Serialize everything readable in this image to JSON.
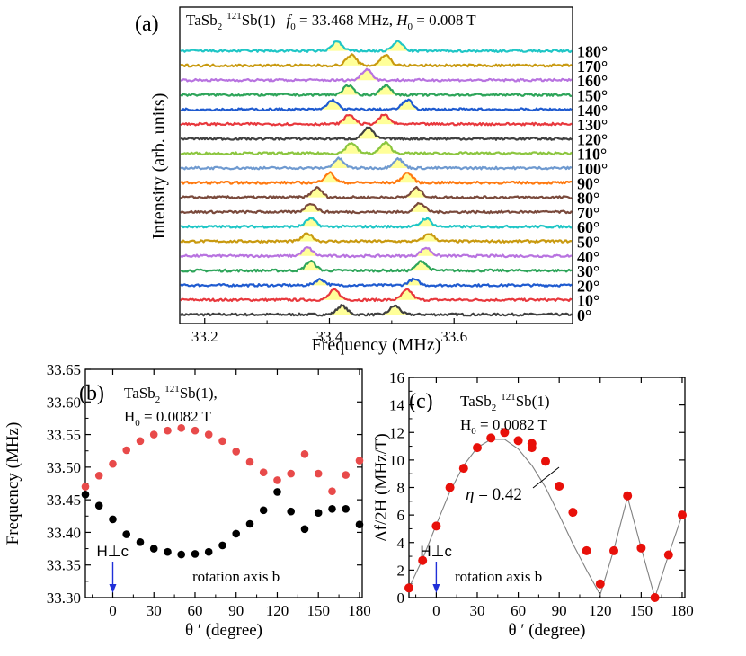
{
  "chart_data": [
    {
      "panel": "(a)",
      "type": "line",
      "title_parts": {
        "compound": "TaSb",
        "compound_sub": "2",
        "isotope": "121",
        "site": "Sb(1)",
        "f0_label": "f",
        "f0_sub": "0",
        "f0_value": " = 33.468 MHz, ",
        "h0_label": "H",
        "h0_sub": "0",
        "h0_value": " = 0.008 T"
      },
      "xlabel": "Frequency (MHz)",
      "ylabel": "Intensity (arb. units)",
      "xlim": [
        33.16,
        33.79
      ],
      "x_ticks": [
        "33.2",
        "33.4",
        "33.6"
      ],
      "x_tick_values": [
        33.2,
        33.4,
        33.6
      ],
      "peak_fill": "#ffff99",
      "spectra": [
        {
          "angle": "0°",
          "color": "#404040",
          "peaks": [
            33.42,
            33.505
          ],
          "amp": 0.75
        },
        {
          "angle": "10°",
          "color": "#e8383d",
          "peaks": [
            33.408,
            33.525
          ],
          "amp": 0.85
        },
        {
          "angle": "20°",
          "color": "#1f5bd0",
          "peaks": [
            33.385,
            33.535
          ],
          "amp": 0.5
        },
        {
          "angle": "30°",
          "color": "#2ea55a",
          "peaks": [
            33.37,
            33.548
          ],
          "amp": 0.8
        },
        {
          "angle": "40°",
          "color": "#b873e0",
          "peaks": [
            33.365,
            33.555
          ],
          "amp": 0.7
        },
        {
          "angle": "50°",
          "color": "#c99a10",
          "peaks": [
            33.365,
            33.56
          ],
          "amp": 0.65
        },
        {
          "angle": "60°",
          "color": "#1fc6c6",
          "peaks": [
            33.37,
            33.555
          ],
          "amp": 0.7
        },
        {
          "angle": "70°",
          "color": "#7a4a3c",
          "peaks": [
            33.37,
            33.545
          ],
          "amp": 0.75
        },
        {
          "angle": "80°",
          "color": "#7a4a3c",
          "peaks": [
            33.38,
            33.54
          ],
          "amp": 0.8
        },
        {
          "angle": "90°",
          "color": "#ff7a10",
          "peaks": [
            33.4,
            33.525
          ],
          "amp": 0.85
        },
        {
          "angle": "100°",
          "color": "#6f9ad0",
          "peaks": [
            33.415,
            33.51
          ],
          "amp": 0.8
        },
        {
          "angle": "110°",
          "color": "#8cc63f",
          "peaks": [
            33.435,
            33.49
          ],
          "amp": 0.9
        },
        {
          "angle": "120°",
          "color": "#404040",
          "peaks": [
            33.462
          ],
          "amp": 0.95
        },
        {
          "angle": "130°",
          "color": "#e8383d",
          "peaks": [
            33.432,
            33.488
          ],
          "amp": 0.8
        },
        {
          "angle": "140°",
          "color": "#1f5bd0",
          "peaks": [
            33.405,
            33.525
          ],
          "amp": 0.8
        },
        {
          "angle": "150°",
          "color": "#2ea55a",
          "peaks": [
            33.43,
            33.49
          ],
          "amp": 0.8
        },
        {
          "angle": "160°",
          "color": "#b873e0",
          "peaks": [
            33.46
          ],
          "amp": 0.95
        },
        {
          "angle": "170°",
          "color": "#c99a10",
          "peaks": [
            33.435,
            33.49
          ],
          "amp": 0.9
        },
        {
          "angle": "180°",
          "color": "#1fc6c6",
          "peaks": [
            33.412,
            33.51
          ],
          "amp": 0.8
        }
      ]
    },
    {
      "panel": "(b)",
      "type": "scatter",
      "title_line1_parts": {
        "compound": "TaSb",
        "compound_sub": "2",
        "isotope": "121",
        "site": "Sb(1),"
      },
      "title_line2_parts": {
        "label": "H",
        "sub": "0",
        "value": " = 0.0082 T"
      },
      "xlabel": "θ ′ (degree)",
      "ylabel": "Frequency (MHz)",
      "xlim": [
        -20,
        182
      ],
      "ylim": [
        33.3,
        33.65
      ],
      "x_ticks": [
        "0",
        "30",
        "60",
        "90",
        "120",
        "150",
        "180"
      ],
      "x_tick_values": [
        0,
        30,
        60,
        90,
        120,
        150,
        180
      ],
      "y_ticks": [
        "33.30",
        "33.35",
        "33.40",
        "33.45",
        "33.50",
        "33.55",
        "33.60",
        "33.65"
      ],
      "y_tick_values": [
        33.3,
        33.35,
        33.4,
        33.45,
        33.5,
        33.55,
        33.6,
        33.65
      ],
      "annotation_hperp": "H⊥c",
      "annotation_rotation": "rotation axis b",
      "series": [
        {
          "color": "#e84a4a",
          "x": [
            -20,
            -10,
            0,
            10,
            20,
            30,
            40,
            50,
            60,
            70,
            80,
            90,
            100,
            110,
            120,
            130,
            140,
            150,
            160,
            170,
            180
          ],
          "y": [
            33.47,
            33.487,
            33.505,
            33.526,
            33.54,
            33.55,
            33.556,
            33.56,
            33.556,
            33.55,
            33.54,
            33.524,
            33.508,
            33.492,
            33.48,
            33.49,
            33.52,
            33.49,
            33.463,
            33.488,
            33.51
          ]
        },
        {
          "color": "#000000",
          "x": [
            -20,
            -10,
            0,
            10,
            20,
            30,
            40,
            50,
            60,
            70,
            80,
            90,
            100,
            110,
            120,
            130,
            140,
            150,
            160,
            170,
            180
          ],
          "y": [
            33.458,
            33.441,
            33.42,
            33.397,
            33.385,
            33.375,
            33.37,
            33.366,
            33.367,
            33.37,
            33.38,
            33.398,
            33.413,
            33.434,
            33.462,
            33.432,
            33.405,
            33.43,
            33.436,
            33.436,
            33.412
          ]
        }
      ]
    },
    {
      "panel": "(c)",
      "type": "scatter",
      "title_line1_parts": {
        "compound": "TaSb",
        "compound_sub": "2",
        "isotope": "121",
        "site": "Sb(1)"
      },
      "title_line2_parts": {
        "label": "H",
        "sub": "0",
        "value": " = 0.0082 T"
      },
      "xlabel": "θ ′ (degree)",
      "ylabel": "Δf/2H (MHz/T)",
      "xlim": [
        -20,
        182
      ],
      "ylim": [
        0,
        16
      ],
      "x_ticks": [
        "0",
        "30",
        "60",
        "90",
        "120",
        "150",
        "180"
      ],
      "x_tick_values": [
        0,
        30,
        60,
        90,
        120,
        150,
        180
      ],
      "y_ticks": [
        "0",
        "2",
        "4",
        "6",
        "8",
        "10",
        "12",
        "14",
        "16"
      ],
      "y_tick_values": [
        0,
        2,
        4,
        6,
        8,
        10,
        12,
        14,
        16
      ],
      "annotation_eta": "η",
      "annotation_eta_value": " = 0.42",
      "annotation_hperp": "H⊥c",
      "annotation_rotation": "rotation axis b",
      "series": [
        {
          "color": "#e8100a",
          "x": [
            -20,
            -10,
            0,
            10,
            20,
            30,
            40,
            50,
            60,
            70,
            70,
            80,
            90,
            100,
            110,
            120,
            130,
            140,
            150,
            160,
            170,
            180
          ],
          "y": [
            0.7,
            2.7,
            5.2,
            8.0,
            9.4,
            10.9,
            11.6,
            12.0,
            11.4,
            11.2,
            10.9,
            9.9,
            8.1,
            6.2,
            3.4,
            1.0,
            3.4,
            7.4,
            3.6,
            0.0,
            3.1,
            6.0
          ]
        }
      ],
      "fit_curve": {
        "color": "#808080",
        "x": [
          -20,
          -10,
          0,
          10,
          20,
          30,
          40,
          50,
          60,
          70,
          80,
          90,
          100,
          110,
          120,
          130,
          140,
          150,
          160,
          170,
          180
        ],
        "y": [
          0.7,
          2.8,
          5.3,
          7.7,
          9.6,
          10.9,
          11.5,
          11.5,
          10.8,
          9.6,
          8.0,
          6.0,
          3.9,
          2.0,
          0.2,
          3.5,
          7.3,
          3.6,
          0.0,
          3.1,
          6.0
        ]
      }
    }
  ]
}
